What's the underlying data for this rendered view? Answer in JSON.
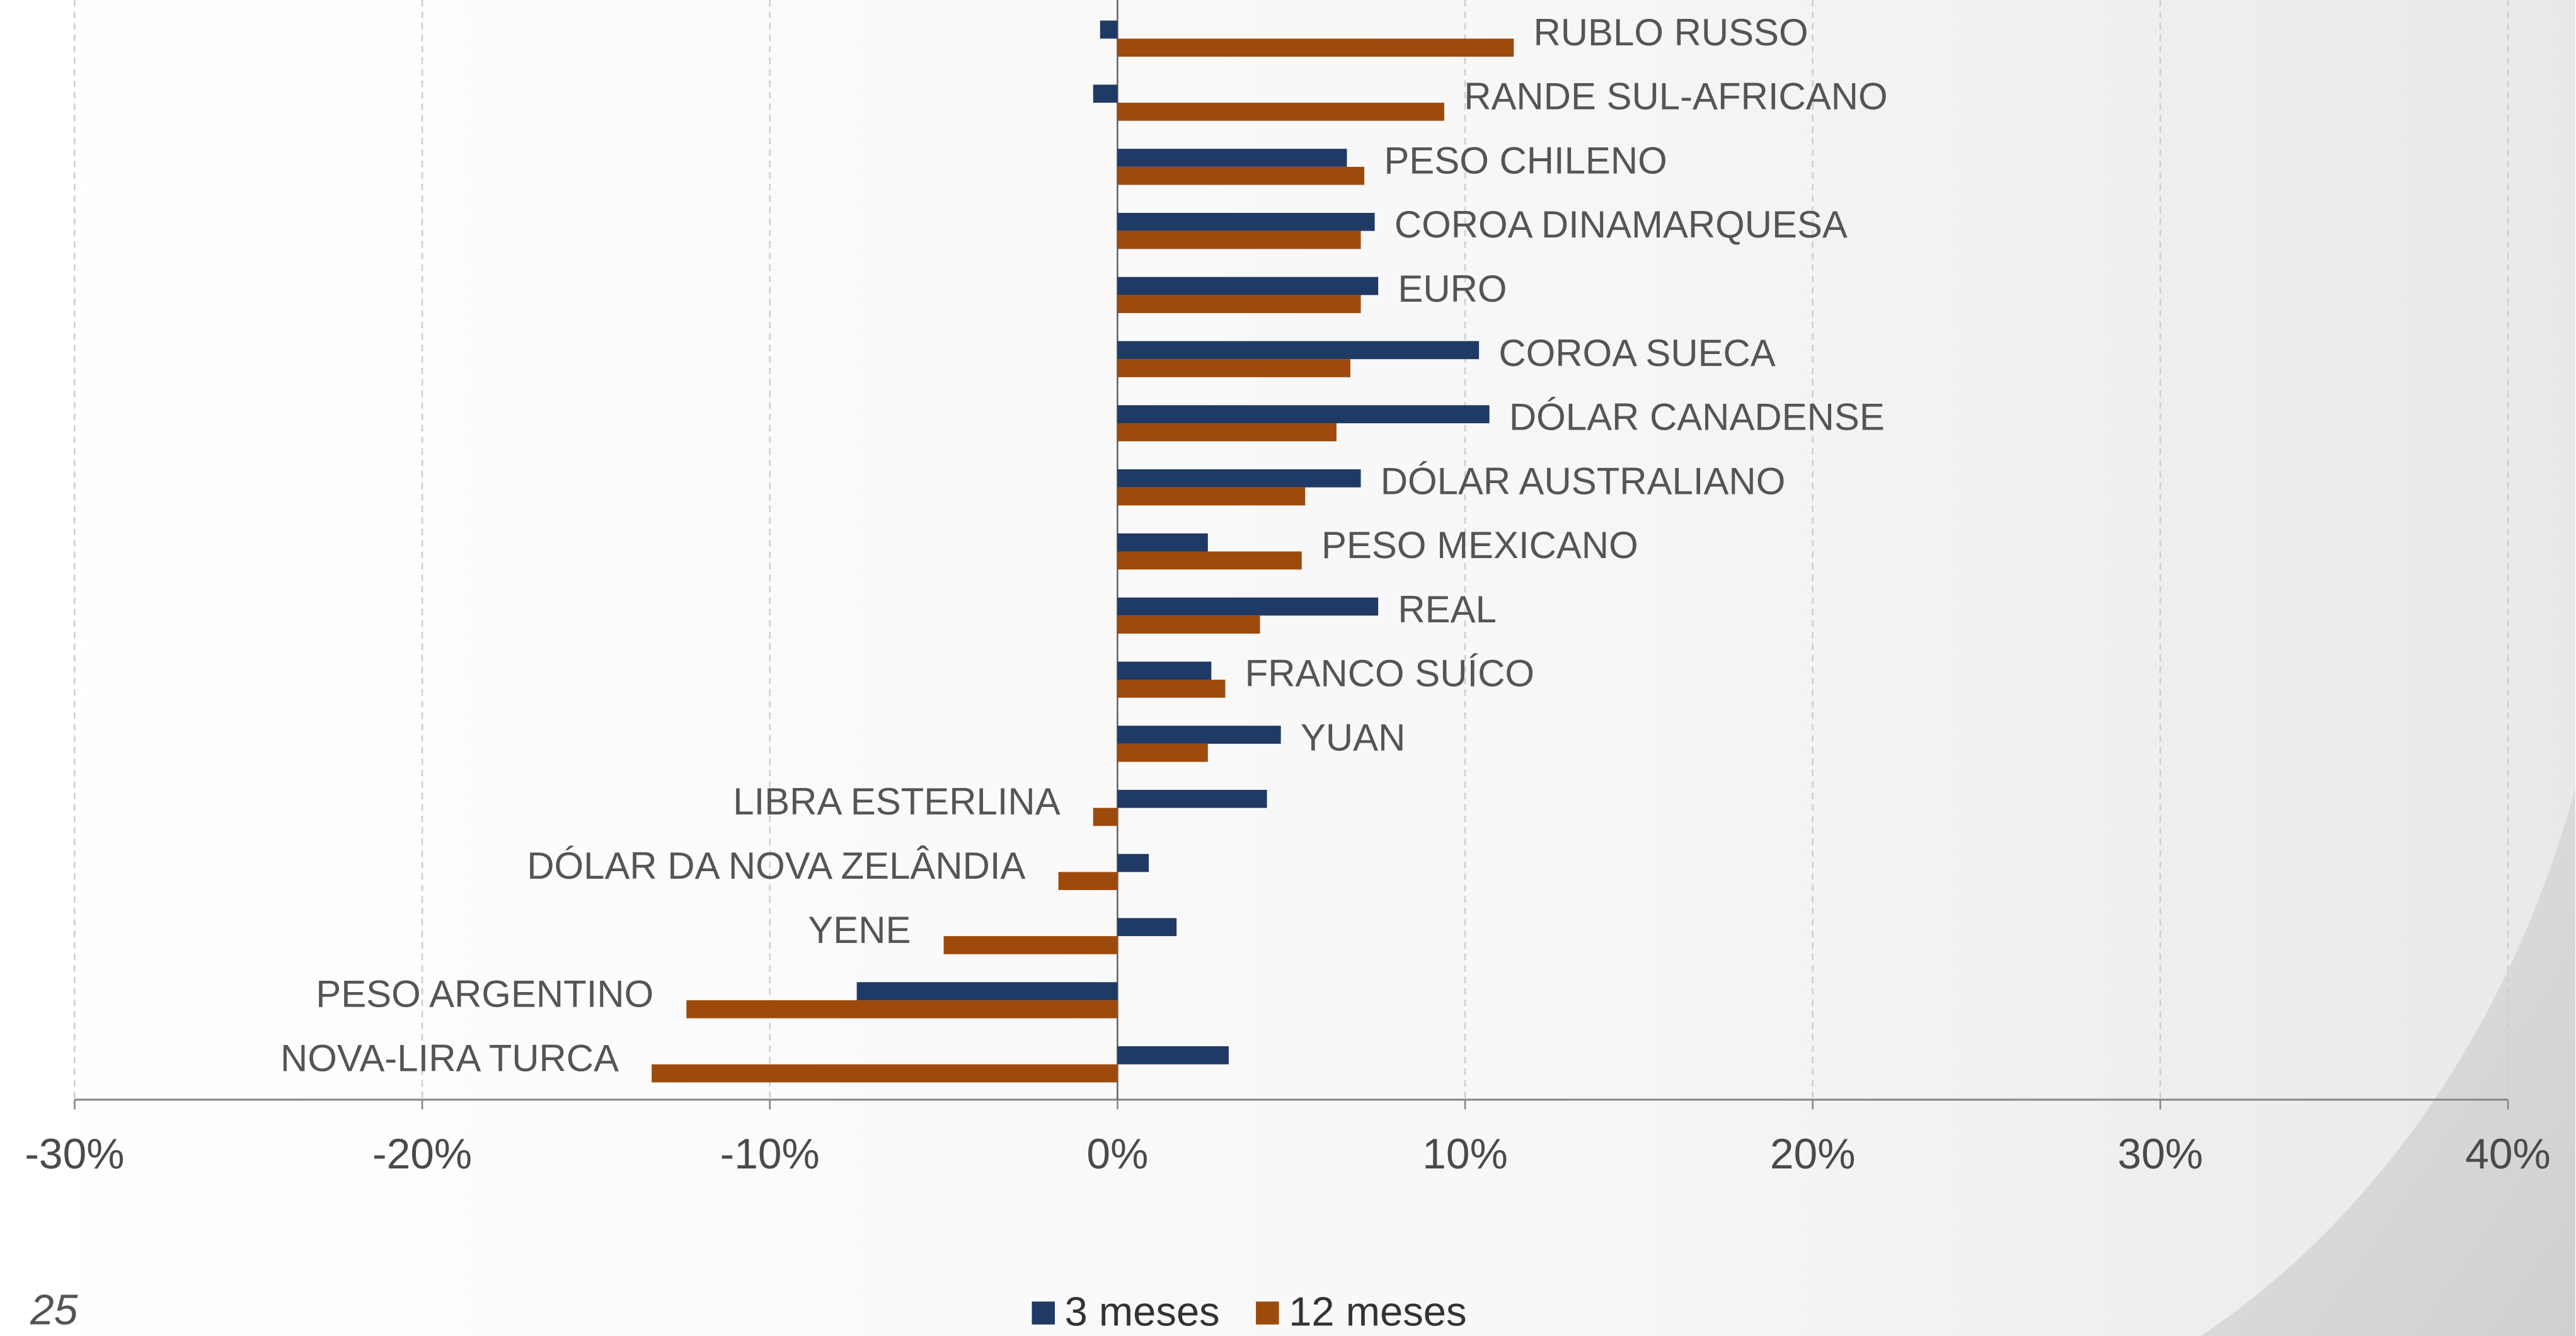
{
  "chart_data": {
    "type": "bar",
    "orientation": "horizontal",
    "categories": [
      "RUBLO RUSSO",
      "RANDE SUL-AFRICANO",
      "PESO CHILENO",
      "COROA DINAMARQUESA",
      "EURO",
      "COROA SUECA",
      "DÓLAR CANADENSE",
      "DÓLAR AUSTRALIANO",
      "PESO MEXICANO",
      "REAL",
      "FRANCO SUÍCO",
      "YUAN",
      "LIBRA ESTERLINA",
      "DÓLAR DA NOVA ZELÂNDIA",
      "YENE",
      "PESO ARGENTINO",
      "NOVA-LIRA TURCA"
    ],
    "series": [
      {
        "name": "3 meses",
        "color": "#1f3a64",
        "values": [
          -0.5,
          -0.7,
          6.6,
          7.4,
          7.5,
          10.4,
          10.7,
          7.0,
          2.6,
          7.5,
          2.7,
          4.7,
          4.3,
          0.9,
          1.7,
          -7.5,
          3.2
        ]
      },
      {
        "name": "12 meses",
        "color": "#9e4a0c",
        "values": [
          11.4,
          9.4,
          7.1,
          7.0,
          7.0,
          6.7,
          6.3,
          5.4,
          5.3,
          4.1,
          3.1,
          2.6,
          -0.7,
          -1.7,
          -5.0,
          -12.4,
          -13.4
        ]
      }
    ],
    "xlim": [
      -30,
      40
    ],
    "xticks": [
      {
        "value": -30,
        "label": "-30%"
      },
      {
        "value": -20,
        "label": "-20%"
      },
      {
        "value": -10,
        "label": "-10%"
      },
      {
        "value": 0,
        "label": "0%"
      },
      {
        "value": 10,
        "label": "10%"
      },
      {
        "value": 20,
        "label": "20%"
      },
      {
        "value": 30,
        "label": "30%"
      },
      {
        "value": 40,
        "label": "40%"
      }
    ],
    "grid": true,
    "legend": "bottom",
    "page_number": "25"
  }
}
